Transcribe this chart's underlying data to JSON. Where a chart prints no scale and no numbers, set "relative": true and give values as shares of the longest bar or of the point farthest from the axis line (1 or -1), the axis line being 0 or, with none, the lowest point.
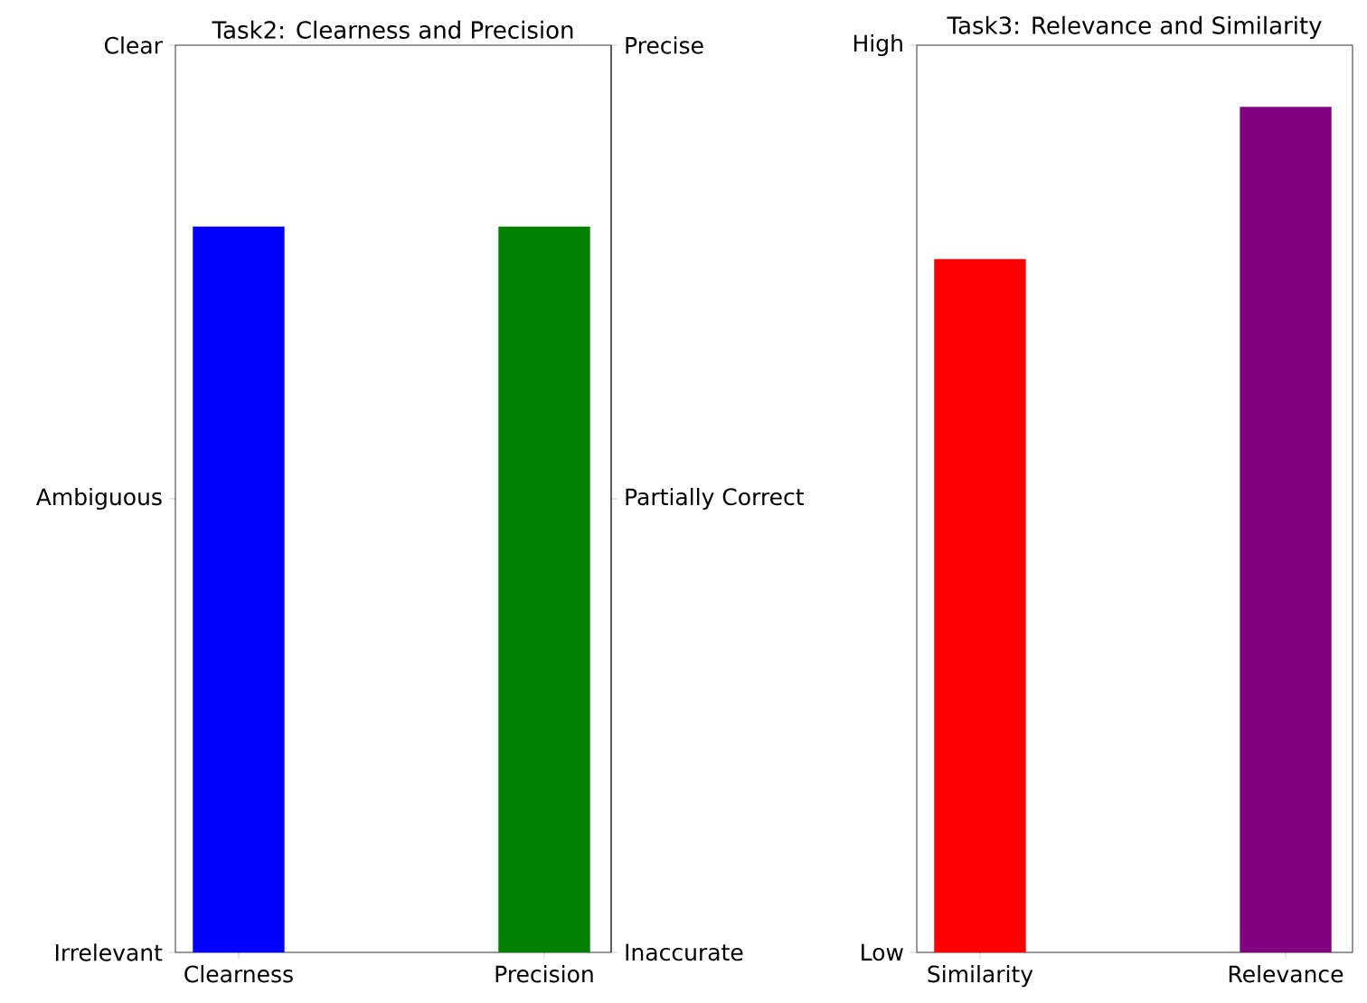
{
  "chart_data": [
    {
      "type": "bar",
      "title": "Task2: Clearness and Precision",
      "categories": [
        "Clearness",
        "Precision"
      ],
      "relative": true,
      "series": [
        {
          "values": [
            1,
            null
          ],
          "color": "#0000ff"
        },
        {
          "values": [
            null,
            1
          ],
          "color": "#008000",
          "axis": "y2"
        }
      ],
      "annotations": [
        "Irrelevant",
        "Ambiguous",
        "Clear",
        "Inaccurate",
        "Partially Correct",
        "Precise"
      ]
    },
    {
      "type": "bar",
      "title": "Task3: Relevance and Similarity",
      "categories": [
        "Similarity",
        "Relevance"
      ],
      "relative": true,
      "values": [
        0.82,
        1
      ],
      "colors": [
        "#ff0000",
        "#800080"
      ],
      "annotations": [
        "Low",
        "High"
      ]
    }
  ]
}
